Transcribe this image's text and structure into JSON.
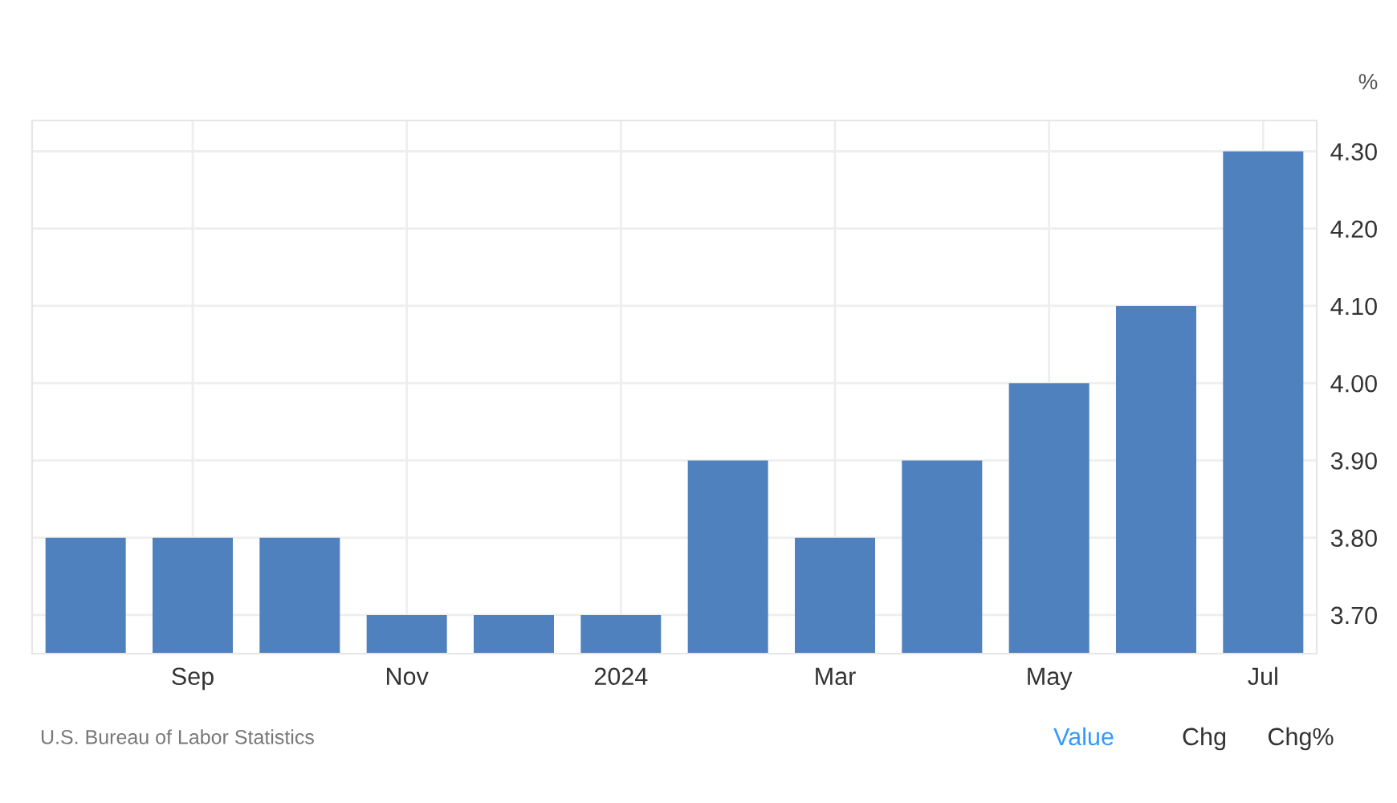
{
  "chart_data": {
    "type": "bar",
    "categories": [
      null,
      "Sep",
      null,
      "Nov",
      null,
      "2024",
      null,
      "Mar",
      null,
      "May",
      null,
      "Jul"
    ],
    "values": [
      3.8,
      3.8,
      3.8,
      3.7,
      3.7,
      3.7,
      3.9,
      3.8,
      3.9,
      4.0,
      4.1,
      4.3
    ],
    "color": "#4e81bd",
    "ylabel": "%",
    "ylim": [
      3.65,
      4.34
    ],
    "yticks": [
      {
        "value": 3.7,
        "label": "3.70"
      },
      {
        "value": 3.8,
        "label": "3.80"
      },
      {
        "value": 3.9,
        "label": "3.90"
      },
      {
        "value": 4.0,
        "label": "4.00"
      },
      {
        "value": 4.1,
        "label": "4.10"
      },
      {
        "value": 4.2,
        "label": "4.20"
      },
      {
        "value": 4.3,
        "label": "4.30"
      }
    ],
    "grid": true,
    "annotations": [
      "U.S. Bureau of Labor Statistics",
      "Value",
      "Chg",
      "Chg%"
    ]
  }
}
